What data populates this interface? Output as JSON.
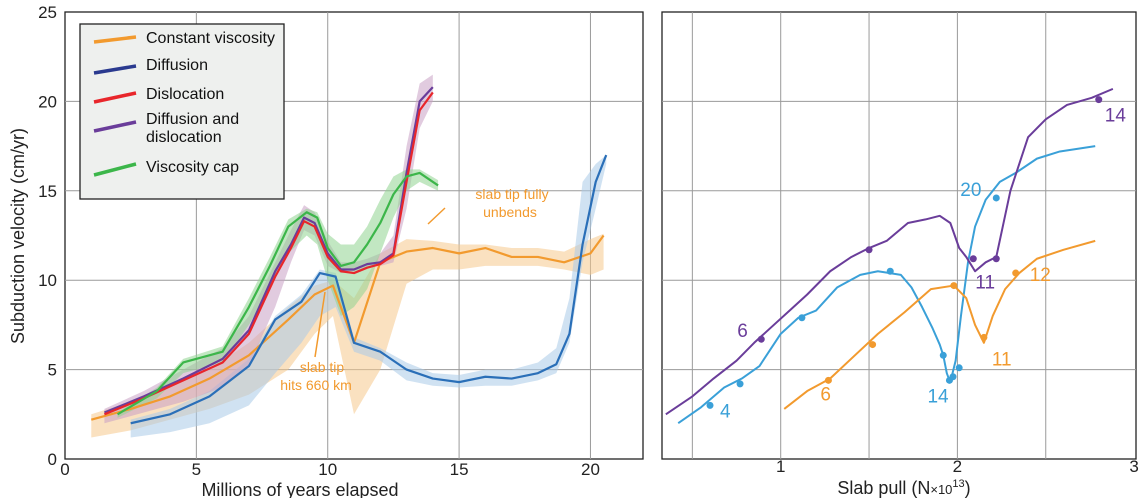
{
  "colors": {
    "constant": "#f29a2e",
    "diffusion": "#2a3a8f",
    "dislocation": "#e8262b",
    "both": "#6a3d9a",
    "cap": "#3cb64a",
    "diffusion_right": "#3aa0d8"
  },
  "chart_data": [
    {
      "type": "line",
      "xlabel": "Millions of years elapsed",
      "ylabel": "Subduction velocity (cm/yr)",
      "xlim": [
        0,
        22
      ],
      "ylim": [
        0,
        25
      ],
      "xticks": [
        "0",
        "5",
        "10",
        "15",
        "20"
      ],
      "yticks": [
        "0",
        "5",
        "10",
        "15",
        "20",
        "25"
      ],
      "grid": true,
      "legend_position": "top-left",
      "legend": [
        "Constant viscosity",
        "Diffusion",
        "Dislocation",
        "Diffusion and dislocation",
        "Viscosity cap"
      ],
      "series": [
        {
          "key": "constant",
          "name": "Constant viscosity",
          "color": "#f29a2e",
          "x": [
            1.0,
            2.5,
            4.0,
            5.5,
            7.0,
            8.5,
            9.5,
            10.2,
            11.0,
            12.0,
            13.0,
            14.0,
            15.0,
            16.0,
            17.0,
            18.0,
            19.0,
            20.0,
            20.5
          ],
          "y": [
            2.2,
            2.8,
            3.5,
            4.5,
            5.8,
            7.8,
            9.2,
            9.7,
            6.5,
            11.0,
            11.6,
            11.8,
            11.5,
            11.8,
            11.3,
            11.3,
            11.0,
            11.5,
            12.5
          ],
          "band_upper": [
            2.5,
            3.2,
            4.0,
            5.0,
            6.5,
            8.5,
            9.7,
            10.0,
            9.0,
            11.5,
            12.3,
            12.2,
            12.0,
            12.0,
            11.8,
            11.8,
            11.6,
            12.3,
            12.6
          ],
          "band_lower": [
            1.2,
            1.6,
            2.2,
            2.8,
            3.6,
            5.0,
            7.0,
            8.0,
            2.5,
            5.0,
            9.8,
            10.6,
            10.6,
            10.8,
            10.8,
            10.8,
            10.6,
            10.3,
            10.6
          ]
        },
        {
          "key": "diffusion",
          "name": "Diffusion",
          "color": "#2a6fb8",
          "x": [
            2.5,
            4.0,
            5.5,
            7.0,
            8.0,
            9.0,
            9.7,
            10.3,
            11.0,
            12.0,
            13.0,
            14.0,
            15.0,
            16.0,
            17.0,
            18.0,
            18.7,
            19.2,
            19.7,
            20.2,
            20.6
          ],
          "y": [
            2.0,
            2.5,
            3.5,
            5.2,
            7.8,
            8.8,
            10.4,
            10.2,
            6.5,
            6.0,
            5.0,
            4.5,
            4.3,
            4.6,
            4.5,
            4.8,
            5.3,
            7.0,
            12.0,
            15.5,
            17.0
          ],
          "band_upper": [
            2.2,
            2.8,
            3.8,
            5.6,
            8.0,
            9.2,
            10.6,
            10.4,
            6.8,
            6.2,
            5.4,
            4.8,
            4.7,
            5.0,
            5.0,
            5.4,
            6.2,
            9.0,
            15.5,
            16.5,
            17.0
          ],
          "band_lower": [
            1.2,
            1.5,
            2.0,
            3.0,
            4.8,
            6.5,
            8.0,
            8.5,
            6.0,
            5.5,
            4.4,
            4.1,
            4.0,
            4.1,
            4.1,
            4.4,
            4.8,
            6.5,
            11.0,
            14.0,
            16.5
          ]
        },
        {
          "key": "both",
          "name": "Diffusion and dislocation",
          "color": "#6a3d9a",
          "x": [
            1.5,
            3.0,
            4.5,
            6.0,
            7.0,
            8.0,
            8.6,
            9.1,
            9.5,
            10.0,
            10.5,
            11.0,
            11.5,
            12.0,
            12.5,
            13.0,
            13.5,
            14.0
          ],
          "y": [
            2.6,
            3.5,
            4.5,
            5.6,
            7.2,
            10.5,
            12.0,
            13.5,
            13.2,
            11.5,
            10.6,
            10.6,
            10.9,
            11.0,
            11.5,
            16.0,
            20.0,
            20.8
          ],
          "band_upper": [
            2.8,
            3.8,
            5.0,
            6.2,
            8.0,
            11.0,
            12.8,
            14.2,
            13.8,
            12.2,
            11.0,
            11.0,
            11.2,
            11.5,
            12.5,
            17.5,
            21.0,
            21.5
          ],
          "band_lower": [
            2.0,
            2.6,
            3.2,
            4.0,
            5.2,
            8.5,
            11.0,
            12.8,
            12.5,
            10.8,
            10.4,
            10.5,
            10.7,
            10.8,
            11.0,
            14.0,
            18.5,
            20.0
          ]
        },
        {
          "key": "dislocation",
          "name": "Dislocation",
          "color": "#e8262b",
          "x": [
            1.5,
            3.0,
            4.5,
            6.0,
            7.0,
            8.0,
            8.6,
            9.1,
            9.5,
            10.0,
            10.5,
            11.0,
            11.5,
            12.0,
            12.5,
            13.0,
            13.5,
            14.0
          ],
          "y": [
            2.5,
            3.4,
            4.4,
            5.4,
            7.0,
            10.2,
            11.8,
            13.3,
            13.0,
            11.3,
            10.5,
            10.4,
            10.7,
            10.9,
            11.4,
            15.5,
            19.5,
            20.5
          ]
        },
        {
          "key": "cap",
          "name": "Viscosity cap",
          "color": "#3cb64a",
          "x": [
            2.0,
            3.5,
            4.5,
            6.0,
            7.0,
            7.8,
            8.5,
            9.2,
            9.6,
            10.0,
            10.5,
            11.0,
            11.5,
            12.0,
            12.5,
            13.0,
            13.5,
            14.2
          ],
          "y": [
            2.5,
            3.8,
            5.4,
            6.0,
            8.5,
            10.8,
            13.0,
            13.8,
            13.5,
            11.8,
            10.8,
            11.0,
            12.0,
            13.2,
            14.8,
            15.8,
            16.0,
            15.3
          ],
          "band_upper": [
            2.6,
            4.0,
            5.6,
            6.3,
            9.0,
            11.3,
            13.4,
            14.0,
            13.8,
            12.6,
            12.0,
            12.0,
            13.0,
            14.5,
            15.8,
            16.2,
            16.2,
            15.6
          ],
          "band_lower": [
            2.3,
            3.4,
            4.8,
            5.4,
            7.5,
            9.5,
            11.5,
            12.5,
            12.0,
            10.0,
            8.0,
            8.5,
            9.5,
            11.5,
            13.5,
            15.0,
            15.5,
            15.0
          ]
        }
      ],
      "annotations": [
        {
          "text_lines": [
            "slab tip fully",
            "unbends"
          ],
          "x": 16.5,
          "y": 13.6,
          "arrow_to": [
            14.2,
            12.3
          ]
        },
        {
          "text_lines": [
            "slab tip",
            "hits 660 km"
          ],
          "x": 9.8,
          "y": 5.4,
          "arrow_to": [
            10.0,
            9.3
          ]
        }
      ]
    },
    {
      "type": "line",
      "xlabel": "Slab pull (N×10^13)",
      "xlim": [
        0.35,
        3.0
      ],
      "xticks": [
        "1",
        "2",
        "3"
      ],
      "ylim": [
        0,
        25
      ],
      "grid": true,
      "series": [
        {
          "key": "diffusion_right",
          "name": "Diffusion",
          "color": "#3aa0d8",
          "x": [
            0.42,
            0.55,
            0.68,
            0.78,
            0.88,
            1.0,
            1.1,
            1.2,
            1.32,
            1.45,
            1.55,
            1.68,
            1.74,
            1.8,
            1.86,
            1.9,
            1.92,
            1.94,
            1.955,
            1.97,
            1.99,
            2.02,
            2.06,
            2.1,
            2.16,
            2.24,
            2.33,
            2.45,
            2.58,
            2.78
          ],
          "y": [
            2.0,
            2.9,
            4.0,
            4.5,
            5.2,
            7.0,
            7.9,
            8.3,
            9.6,
            10.3,
            10.5,
            10.3,
            9.6,
            8.5,
            7.3,
            6.4,
            5.8,
            4.8,
            4.4,
            4.7,
            5.5,
            8.0,
            11.0,
            13.0,
            14.5,
            15.5,
            16.0,
            16.8,
            17.2,
            17.5
          ],
          "points": [
            {
              "x": 0.6,
              "y": 3.0,
              "label": "4"
            },
            {
              "x": 0.77,
              "y": 4.2,
              "label": ""
            },
            {
              "x": 1.12,
              "y": 7.9,
              "label": ""
            },
            {
              "x": 1.62,
              "y": 10.5,
              "label": ""
            },
            {
              "x": 1.92,
              "y": 5.8,
              "label": ""
            },
            {
              "x": 1.955,
              "y": 4.4,
              "label": "14"
            },
            {
              "x": 1.975,
              "y": 4.6,
              "label": ""
            },
            {
              "x": 2.01,
              "y": 5.1,
              "label": ""
            },
            {
              "x": 2.22,
              "y": 14.6,
              "label": "20"
            }
          ]
        },
        {
          "key": "constant_right",
          "name": "Constant viscosity",
          "color": "#f29a2e",
          "x": [
            1.02,
            1.15,
            1.28,
            1.42,
            1.55,
            1.7,
            1.85,
            1.98,
            2.05,
            2.1,
            2.15,
            2.2,
            2.27,
            2.35,
            2.45,
            2.6,
            2.78
          ],
          "y": [
            2.8,
            3.8,
            4.5,
            5.8,
            7.0,
            8.2,
            9.5,
            9.7,
            9.0,
            7.5,
            6.5,
            8.0,
            9.5,
            10.4,
            11.2,
            11.7,
            12.2
          ],
          "points": [
            {
              "x": 1.27,
              "y": 4.4,
              "label": "6"
            },
            {
              "x": 1.52,
              "y": 6.4,
              "label": ""
            },
            {
              "x": 1.98,
              "y": 9.7,
              "label": ""
            },
            {
              "x": 2.33,
              "y": 10.4,
              "label": "12"
            },
            {
              "x": 2.15,
              "y": 6.8,
              "label": "11"
            }
          ]
        },
        {
          "key": "both_right",
          "name": "Diffusion and dislocation",
          "color": "#6a3d9a",
          "x": [
            0.35,
            0.5,
            0.62,
            0.75,
            0.85,
            0.95,
            1.05,
            1.15,
            1.28,
            1.4,
            1.5,
            1.6,
            1.72,
            1.82,
            1.9,
            1.96,
            2.01,
            2.05,
            2.1,
            2.16,
            2.22,
            2.3,
            2.4,
            2.5,
            2.62,
            2.76,
            2.88
          ],
          "y": [
            2.5,
            3.5,
            4.5,
            5.5,
            6.5,
            7.4,
            8.3,
            9.2,
            10.5,
            11.3,
            11.8,
            12.2,
            13.2,
            13.4,
            13.6,
            13.2,
            11.8,
            11.3,
            10.5,
            11.0,
            11.3,
            15.0,
            18.0,
            19.0,
            19.8,
            20.2,
            20.7
          ],
          "points": [
            {
              "x": 0.89,
              "y": 6.7,
              "label": "6"
            },
            {
              "x": 1.5,
              "y": 11.7,
              "label": ""
            },
            {
              "x": 2.09,
              "y": 11.2,
              "label": "11"
            },
            {
              "x": 2.22,
              "y": 11.2,
              "label": ""
            },
            {
              "x": 2.8,
              "y": 20.1,
              "label": "14"
            }
          ]
        }
      ]
    }
  ],
  "labels": {
    "left_xlabel": "Millions of years elapsed",
    "left_ylabel": "Subduction velocity (cm/yr)",
    "right_xlabel_prefix": "Slab pull (N",
    "right_xlabel_times": "×10",
    "right_xlabel_exp": "13",
    "right_xlabel_suffix": ")",
    "legend_constant": "Constant viscosity",
    "legend_diffusion": "Diffusion",
    "legend_dislocation": "Dislocation",
    "legend_both_1": "Diffusion and",
    "legend_both_2": "dislocation",
    "legend_cap": "Viscosity cap",
    "ann1_line1": "slab tip fully",
    "ann1_line2": "unbends",
    "ann2_line1": "slab tip",
    "ann2_line2": "hits 660 km"
  }
}
